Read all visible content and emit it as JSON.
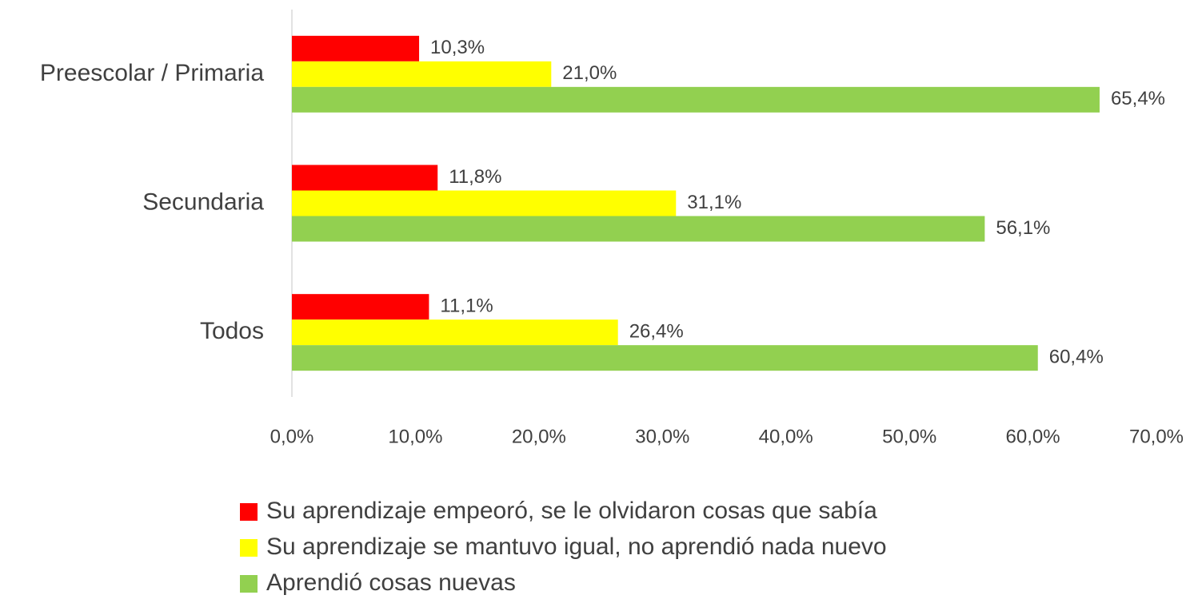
{
  "chart_data": {
    "type": "hbar",
    "categories": [
      "Preescolar / Primaria",
      "Secundaria",
      "Todos"
    ],
    "series": [
      {
        "name": "Su aprendizaje empeoró, se le olvidaron cosas que sabía",
        "color": "#ff0000",
        "values": [
          10.3,
          11.8,
          11.1
        ],
        "value_labels": [
          "10,3%",
          "11,8%",
          "11,1%"
        ]
      },
      {
        "name": "Su aprendizaje se mantuvo igual, no aprendió nada nuevo",
        "color": "#ffff00",
        "values": [
          21.0,
          31.1,
          26.4
        ],
        "value_labels": [
          "21,0%",
          "31,1%",
          "26,4%"
        ]
      },
      {
        "name": "Aprendió cosas nuevas",
        "color": "#92d050",
        "values": [
          65.4,
          56.1,
          60.4
        ],
        "value_labels": [
          "65,4%",
          "56,1%",
          "60,4%"
        ]
      }
    ],
    "xlim": [
      0,
      70
    ],
    "xticks": [
      {
        "value": 0,
        "label": "0,0%"
      },
      {
        "value": 10,
        "label": "10,0%"
      },
      {
        "value": 20,
        "label": "20,0%"
      },
      {
        "value": 30,
        "label": "30,0%"
      },
      {
        "value": 40,
        "label": "40,0%"
      },
      {
        "value": 50,
        "label": "50,0%"
      },
      {
        "value": 60,
        "label": "60,0%"
      },
      {
        "value": 70,
        "label": "70,0%"
      }
    ],
    "legend": "bottom"
  }
}
